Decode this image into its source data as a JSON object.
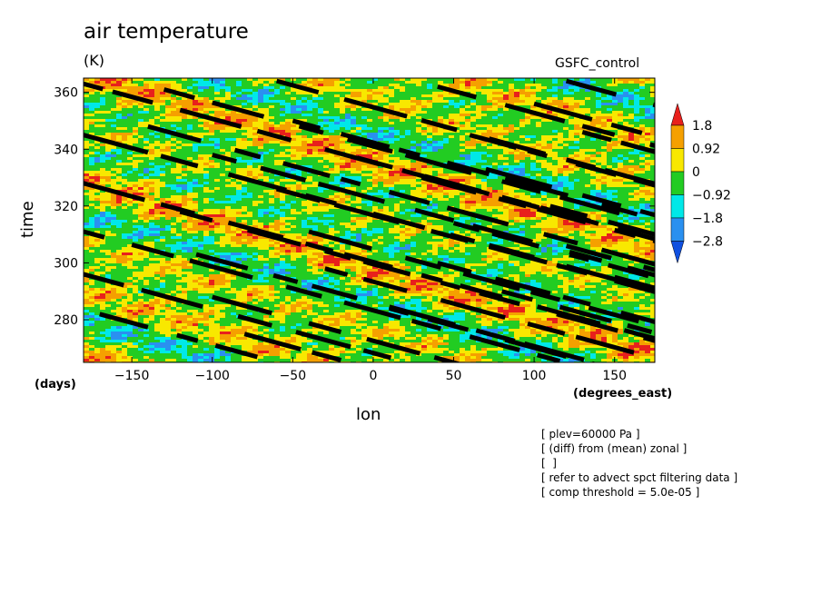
{
  "chart_data": {
    "type": "heatmap",
    "title": "air temperature",
    "units": "(K)",
    "source": "GSFC_control",
    "xlabel": "lon",
    "ylabel": "time",
    "x_unit_left": "(days)",
    "x_unit_right": "(degrees_east)",
    "xlim": [
      -180,
      175
    ],
    "ylim": [
      265,
      365
    ],
    "xticks": [
      -150,
      -100,
      -50,
      0,
      50,
      100,
      150
    ],
    "yticks": [
      280,
      300,
      320,
      340,
      360
    ],
    "colorbar": {
      "labels": [
        "1.8",
        "0.92",
        "0",
        "-0.92",
        "-1.8",
        "-2.8"
      ],
      "colors": [
        "#e8201c",
        "#f5a000",
        "#f8e800",
        "#22cc22",
        "#00e8e8",
        "#2a90f0",
        "#1050e0"
      ]
    },
    "filtered_tracks": {
      "description_color": "#000000",
      "lon_per_day": -6.5,
      "start_points": [
        {
          "lon": -180,
          "t": 363
        },
        {
          "lon": -130,
          "t": 361
        },
        {
          "lon": -60,
          "t": 364
        },
        {
          "lon": -140,
          "t": 348
        },
        {
          "lon": -180,
          "t": 345
        },
        {
          "lon": -50,
          "t": 350
        },
        {
          "lon": 40,
          "t": 362
        },
        {
          "lon": 120,
          "t": 364
        },
        {
          "lon": -180,
          "t": 328
        },
        {
          "lon": -100,
          "t": 338
        },
        {
          "lon": -10,
          "t": 337
        },
        {
          "lon": 60,
          "t": 345
        },
        {
          "lon": 100,
          "t": 356
        },
        {
          "lon": -180,
          "t": 311
        },
        {
          "lon": -120,
          "t": 318
        },
        {
          "lon": -60,
          "t": 326
        },
        {
          "lon": 30,
          "t": 330
        },
        {
          "lon": 70,
          "t": 333
        },
        {
          "lon": 130,
          "t": 346
        },
        {
          "lon": -180,
          "t": 296
        },
        {
          "lon": -110,
          "t": 303
        },
        {
          "lon": -40,
          "t": 311
        },
        {
          "lon": 50,
          "t": 314
        },
        {
          "lon": 110,
          "t": 320
        },
        {
          "lon": -170,
          "t": 282
        },
        {
          "lon": -100,
          "t": 288
        },
        {
          "lon": -30,
          "t": 298
        },
        {
          "lon": 40,
          "t": 300
        },
        {
          "lon": 120,
          "t": 306
        },
        {
          "lon": -80,
          "t": 275
        },
        {
          "lon": 10,
          "t": 284
        },
        {
          "lon": 80,
          "t": 290
        },
        {
          "lon": 150,
          "t": 295
        }
      ]
    }
  },
  "notes": [
    "[ plev=60000 Pa ]",
    "[ (diff) from (mean) zonal ]",
    "[  ]",
    "[ refer to advect spct filtering data ]",
    "[ comp threshold = 5.0e-05 ]"
  ]
}
